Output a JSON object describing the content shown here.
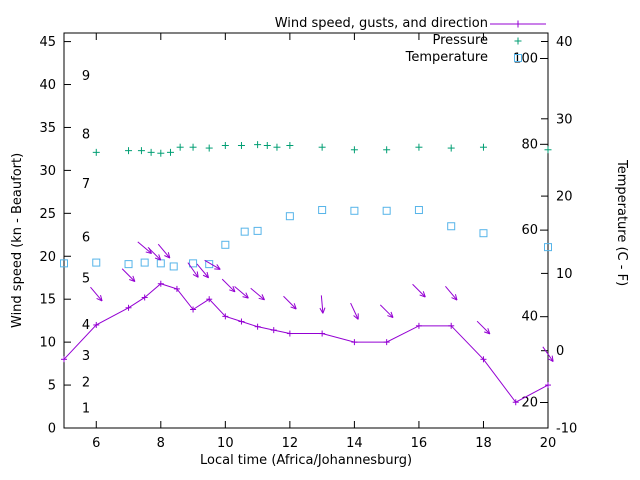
{
  "figure": {
    "background": "#ffffff"
  },
  "colors": {
    "wind": "#9400d3",
    "pressure": "#009e73",
    "temperature": "#56b4e9",
    "axis": "#000000"
  },
  "legend": [
    {
      "label": "Wind speed, gusts, and direction",
      "marker": "line-plus",
      "series": "wind"
    },
    {
      "label": "Pressure",
      "marker": "plus",
      "series": "pressure"
    },
    {
      "label": "Temperature",
      "marker": "square",
      "series": "temperature"
    }
  ],
  "chart_data": {
    "type": "line",
    "title": "",
    "xlabel": "Local time (Africa/Johannesburg)",
    "ylabel_left": "Wind speed (kn - Beaufort)",
    "ylabel_right": "Temperature (C - F)",
    "x_range": [
      5,
      20
    ],
    "x_ticks": [
      6,
      8,
      10,
      12,
      14,
      16,
      18,
      20
    ],
    "y_left_ticks": [
      0,
      5,
      10,
      15,
      20,
      25,
      30,
      35,
      40,
      45
    ],
    "y_left_range": [
      0,
      46
    ],
    "y_right_ticks": [
      -10,
      0,
      10,
      20,
      30,
      40
    ],
    "y_right_range": [
      -10,
      41.1
    ],
    "grid": false,
    "legend_position": "top-right",
    "beaufort_labels": [
      {
        "label": "1",
        "kn": 2.3
      },
      {
        "label": "2",
        "kn": 5.3
      },
      {
        "label": "3",
        "kn": 8.4
      },
      {
        "label": "4",
        "kn": 12
      },
      {
        "label": "5",
        "kn": 17.4
      },
      {
        "label": "6",
        "kn": 22.2
      },
      {
        "label": "7",
        "kn": 28.4
      },
      {
        "label": "8",
        "kn": 34.2
      },
      {
        "label": "9",
        "kn": 41
      }
    ],
    "fahrenheit_labels": [
      {
        "label": "20",
        "c": -6.7
      },
      {
        "label": "40",
        "c": 4.4
      },
      {
        "label": "60",
        "c": 15.6
      },
      {
        "label": "80",
        "c": 26.7
      },
      {
        "label": "100",
        "c": 37.8
      }
    ],
    "series": {
      "wind_speed": {
        "axis": "left",
        "units": "kn",
        "x": [
          5,
          6,
          7,
          7.5,
          8,
          8.5,
          9,
          9.5,
          10,
          10.5,
          11,
          11.5,
          12,
          13,
          14,
          15,
          16,
          17,
          18,
          19,
          20
        ],
        "values": [
          8,
          12,
          14,
          15.2,
          16.8,
          16.2,
          13.8,
          15,
          13,
          12.4,
          11.8,
          11.4,
          11,
          11,
          10,
          10,
          11.9,
          11.9,
          8,
          3,
          5
        ]
      },
      "gusts": {
        "axis": "left",
        "units": "kn",
        "note": "arrow markers show gust value and wind direction; angle in degrees clockwise from screen-right",
        "points": [
          {
            "x": 6.0,
            "kn": 15.6,
            "angle": 50
          },
          {
            "x": 7.0,
            "kn": 17.8,
            "angle": 45
          },
          {
            "x": 7.5,
            "kn": 21.0,
            "angle": 40
          },
          {
            "x": 7.8,
            "kn": 20.3,
            "angle": 45
          },
          {
            "x": 8.1,
            "kn": 20.6,
            "angle": 50
          },
          {
            "x": 9.0,
            "kn": 18.4,
            "angle": 55
          },
          {
            "x": 9.3,
            "kn": 18.3,
            "angle": 50
          },
          {
            "x": 9.6,
            "kn": 19.0,
            "angle": 30
          },
          {
            "x": 10.1,
            "kn": 16.6,
            "angle": 45
          },
          {
            "x": 10.5,
            "kn": 15.8,
            "angle": 40
          },
          {
            "x": 11.0,
            "kn": 15.6,
            "angle": 40
          },
          {
            "x": 12.0,
            "kn": 14.6,
            "angle": 45
          },
          {
            "x": 13.0,
            "kn": 14.4,
            "angle": 85
          },
          {
            "x": 14.0,
            "kn": 13.6,
            "angle": 65
          },
          {
            "x": 15.0,
            "kn": 13.6,
            "angle": 45
          },
          {
            "x": 16.0,
            "kn": 16.0,
            "angle": 45
          },
          {
            "x": 17.0,
            "kn": 15.7,
            "angle": 50
          },
          {
            "x": 18.0,
            "kn": 11.7,
            "angle": 45
          },
          {
            "x": 20.0,
            "kn": 8.6,
            "angle": 55
          }
        ]
      },
      "pressure": {
        "axis": "left",
        "note": "pressure curve plotted as markers near 32-33 on the left-axis scale; no pressure unit labels visible",
        "x": [
          6,
          7,
          7.4,
          7.7,
          8,
          8.3,
          8.6,
          9,
          9.5,
          10,
          10.5,
          11,
          11.3,
          11.6,
          12,
          13,
          14,
          15,
          16,
          17,
          18,
          20
        ],
        "values": [
          32.1,
          32.3,
          32.3,
          32.1,
          32.0,
          32.1,
          32.7,
          32.7,
          32.6,
          32.9,
          32.9,
          33.0,
          32.9,
          32.7,
          32.9,
          32.7,
          32.4,
          32.4,
          32.7,
          32.6,
          32.7,
          32.4
        ]
      },
      "temperature": {
        "axis": "right",
        "units": "C",
        "x": [
          5,
          6,
          7,
          7.5,
          8,
          8.4,
          9,
          9.5,
          10,
          10.6,
          11,
          12,
          13,
          14,
          15,
          16,
          17,
          18,
          20
        ],
        "values_c": [
          11.3,
          11.4,
          11.2,
          11.4,
          11.3,
          10.9,
          11.3,
          11.2,
          13.7,
          15.4,
          15.5,
          17.4,
          18.2,
          18.1,
          18.1,
          18.2,
          16.1,
          15.2,
          13.4
        ]
      }
    }
  }
}
